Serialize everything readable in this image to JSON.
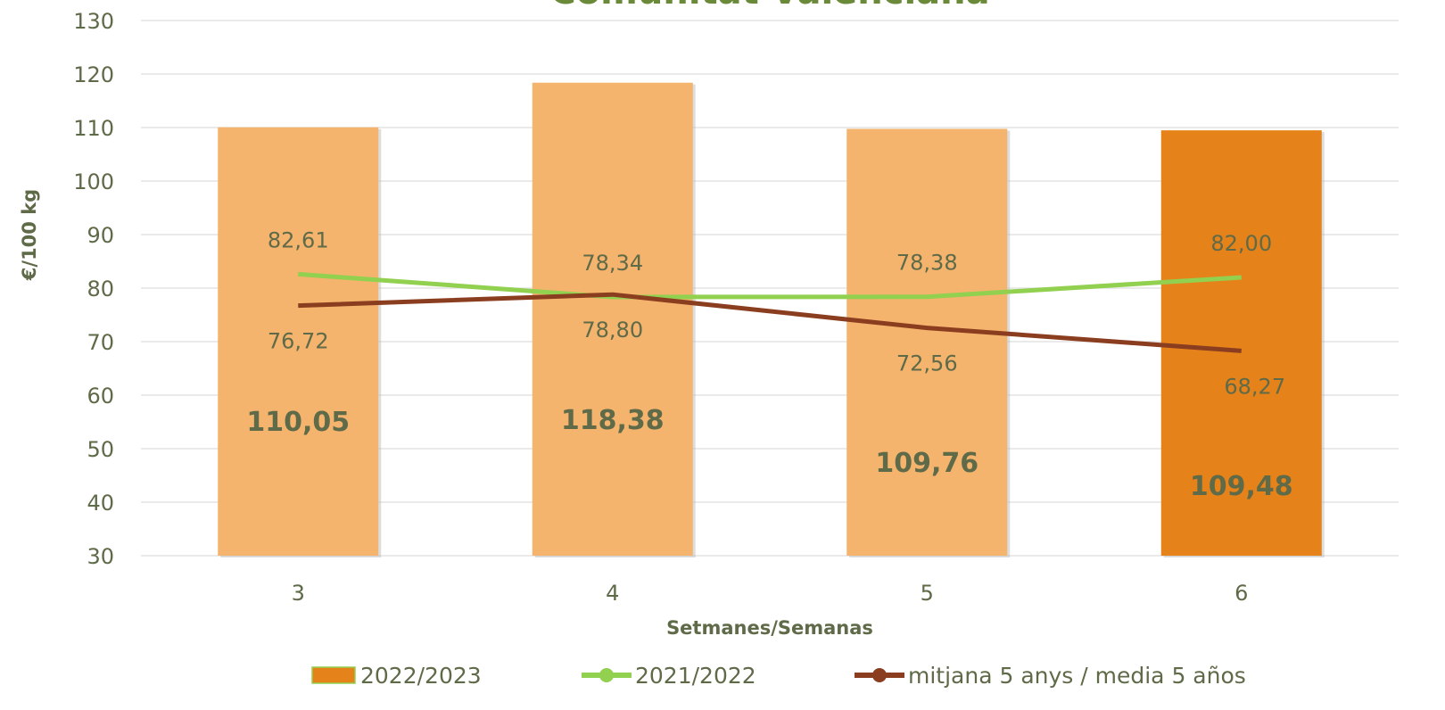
{
  "chart_data": {
    "type": "bar_line",
    "title": "Comunitat Valenciana",
    "x_label": "Setmanes/Semanas",
    "y_label": "€/100 kg",
    "categories": [
      "3",
      "4",
      "5",
      "6"
    ],
    "ylim": [
      30,
      130
    ],
    "yticks": [
      30,
      40,
      50,
      60,
      70,
      80,
      90,
      100,
      110,
      120,
      130
    ],
    "grid": true,
    "legend": "bottom",
    "series": [
      {
        "name": "2022/2023",
        "type": "bar",
        "color": "#e5821a",
        "point_colors": [
          "#f4b46e",
          "#f4b46e",
          "#f4b46e",
          "#e5821a"
        ],
        "values": [
          110.05,
          118.38,
          109.76,
          109.48
        ],
        "value_labels": [
          "110,05",
          "118,38",
          "109,76",
          "109,48"
        ]
      },
      {
        "name": "2021/2022",
        "type": "line",
        "color": "#92d050",
        "values": [
          82.61,
          78.34,
          78.38,
          82.0
        ],
        "value_labels": [
          "82,61",
          "78,34",
          "78,38",
          "82,00"
        ]
      },
      {
        "name": "mitjana 5 anys / media 5 años",
        "type": "line",
        "color": "#8b3e1f",
        "values": [
          76.72,
          78.8,
          72.56,
          68.27
        ],
        "value_labels": [
          "76,72",
          "78,80",
          "72,56",
          "68,27"
        ]
      }
    ]
  }
}
